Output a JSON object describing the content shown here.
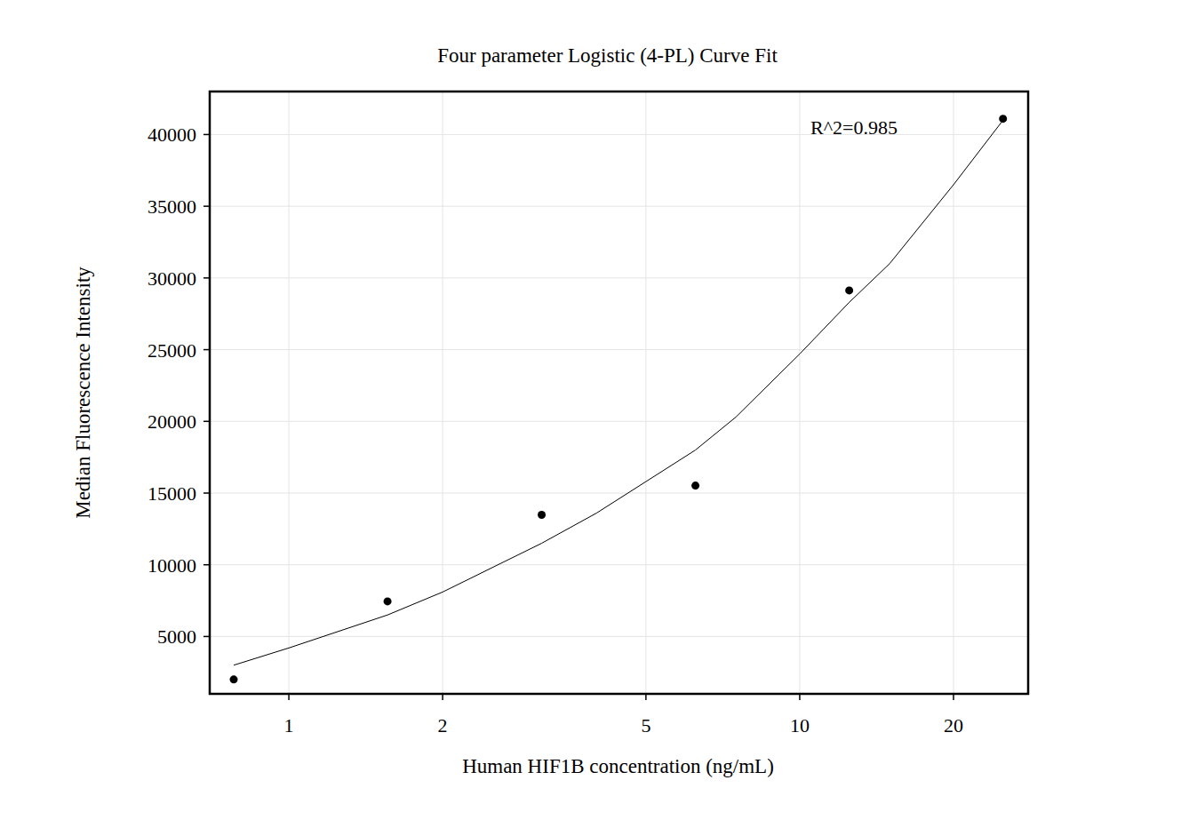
{
  "chart_data": {
    "type": "scatter",
    "title": "Four parameter Logistic (4-PL) Curve Fit",
    "x_label": "Human HIF1B concentration (ng/mL)",
    "y_label": "Median Fluorescence Intensity",
    "annotation": "R^2=0.985",
    "log": "x",
    "grid": true,
    "xlim": [
      0.7,
      28
    ],
    "ylim": [
      1000,
      43000
    ],
    "xticks": [
      1,
      2,
      5,
      10,
      20
    ],
    "yticks": [
      5000,
      10000,
      15000,
      20000,
      25000,
      30000,
      35000,
      40000
    ],
    "series": [
      {
        "type": "scatter",
        "marker": "circle",
        "color": "#000000",
        "x": [
          0.78,
          1.56,
          3.125,
          6.25,
          12.5,
          25
        ],
        "values": [
          2000,
          7450,
          13480,
          15520,
          29130,
          41100
        ]
      },
      {
        "type": "line",
        "line_style": "solid",
        "color": "#000000",
        "x": [
          0.78,
          1,
          1.56,
          2,
          3.125,
          4,
          5,
          6.25,
          7.5,
          10,
          12.5,
          15,
          20,
          25
        ],
        "values": [
          3000,
          4200,
          6500,
          8100,
          11500,
          13600,
          15800,
          18000,
          20300,
          24700,
          28300,
          31000,
          36500,
          41000
        ]
      }
    ]
  }
}
